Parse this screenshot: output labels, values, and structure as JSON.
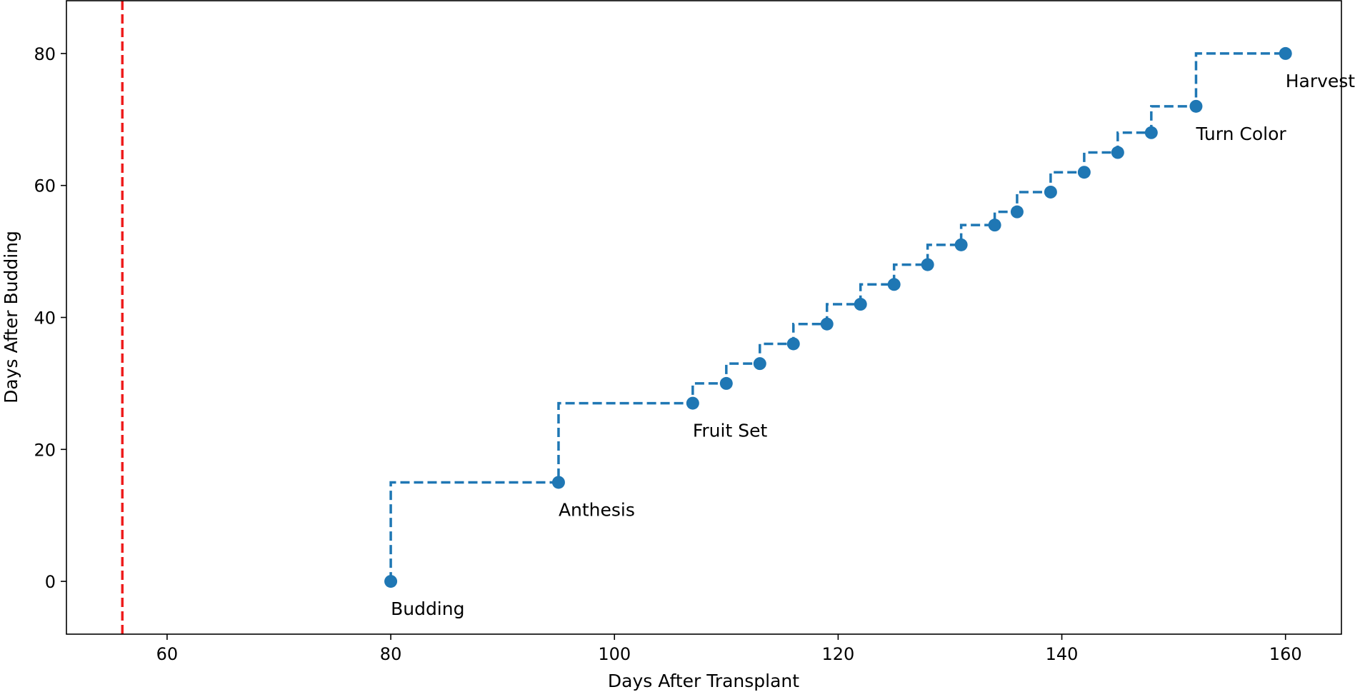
{
  "chart_data": {
    "type": "line",
    "xlabel": "Days After Transplant",
    "ylabel": "Days After Budding",
    "xlim": [
      51,
      165
    ],
    "ylim": [
      -8,
      88
    ],
    "xticks": [
      60,
      80,
      100,
      120,
      140,
      160
    ],
    "yticks": [
      0,
      20,
      40,
      60,
      80
    ],
    "grid": false,
    "line_style": "dashed",
    "step": "pre",
    "series_color": "#1f77b4",
    "points": [
      {
        "x": 80,
        "y": 0
      },
      {
        "x": 95,
        "y": 15
      },
      {
        "x": 107,
        "y": 27
      },
      {
        "x": 110,
        "y": 30
      },
      {
        "x": 113,
        "y": 33
      },
      {
        "x": 116,
        "y": 36
      },
      {
        "x": 119,
        "y": 39
      },
      {
        "x": 122,
        "y": 42
      },
      {
        "x": 125,
        "y": 45
      },
      {
        "x": 128,
        "y": 48
      },
      {
        "x": 131,
        "y": 51
      },
      {
        "x": 134,
        "y": 54
      },
      {
        "x": 136,
        "y": 56
      },
      {
        "x": 139,
        "y": 59
      },
      {
        "x": 142,
        "y": 62
      },
      {
        "x": 145,
        "y": 65
      },
      {
        "x": 148,
        "y": 68
      },
      {
        "x": 152,
        "y": 72
      },
      {
        "x": 160,
        "y": 80
      }
    ],
    "annotations": [
      {
        "text": "Budding",
        "x": 80,
        "y": 0
      },
      {
        "text": "Anthesis",
        "x": 95,
        "y": 15
      },
      {
        "text": "Fruit Set",
        "x": 107,
        "y": 27
      },
      {
        "text": "Turn Color",
        "x": 152,
        "y": 72
      },
      {
        "text": "Harvest",
        "x": 160,
        "y": 80
      }
    ],
    "reference_line": {
      "orientation": "vertical",
      "x": 56,
      "color": "#ee1c1c",
      "style": "dashed"
    }
  }
}
